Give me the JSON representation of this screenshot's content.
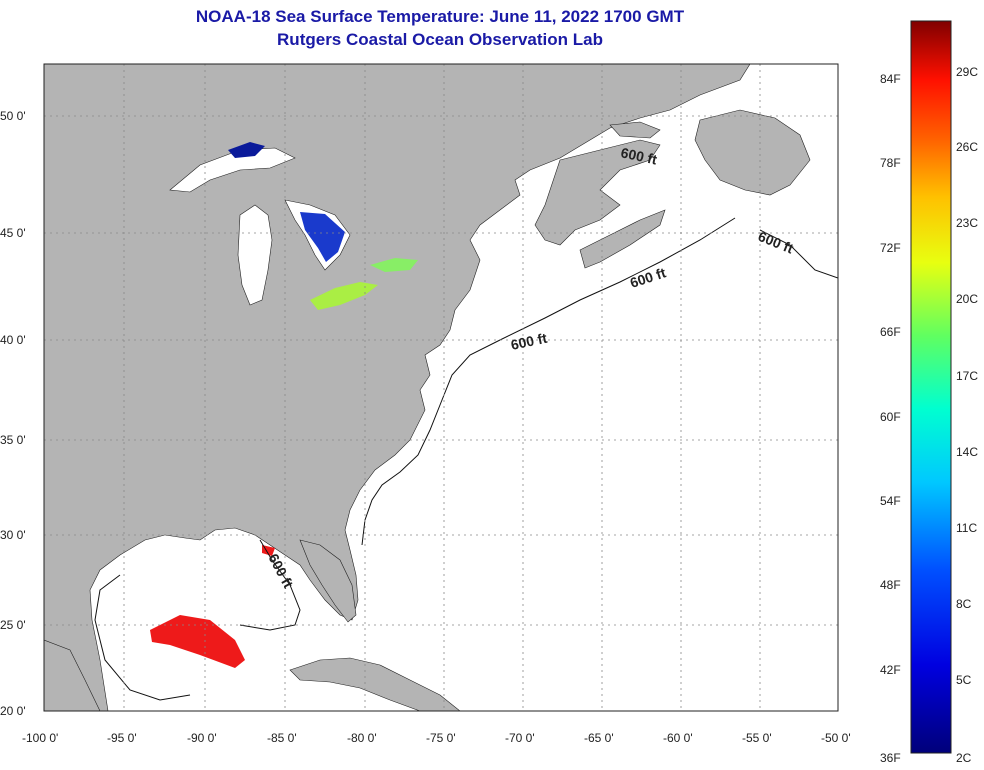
{
  "title": "NOAA-18 Sea Surface Temperature:  June 11, 2022 1700 GMT",
  "subtitle": "Rutgers Coastal Ocean Observation Lab",
  "map": {
    "lat_labels": [
      "50 0'",
      "45 0'",
      "40 0'",
      "35 0'",
      "30 0'",
      "25 0'",
      "20 0'"
    ],
    "lon_labels": [
      "-100 0'",
      "-95 0'",
      "-90 0'",
      "-85 0'",
      "-80 0'",
      "-75 0'",
      "-70 0'",
      "-65 0'",
      "-60 0'",
      "-55 0'",
      "-50 0'"
    ],
    "contour_label": "600 ft",
    "land_color": "#b4b4b4",
    "ocean_color": "#ffffff"
  },
  "colorbar": {
    "fahrenheit_labels": [
      "84F",
      "78F",
      "72F",
      "66F",
      "60F",
      "54F",
      "48F",
      "42F",
      "36F"
    ],
    "celsius_labels": [
      "29C",
      "26C",
      "23C",
      "20C",
      "17C",
      "14C",
      "11C",
      "8C",
      "5C",
      "2C"
    ]
  }
}
